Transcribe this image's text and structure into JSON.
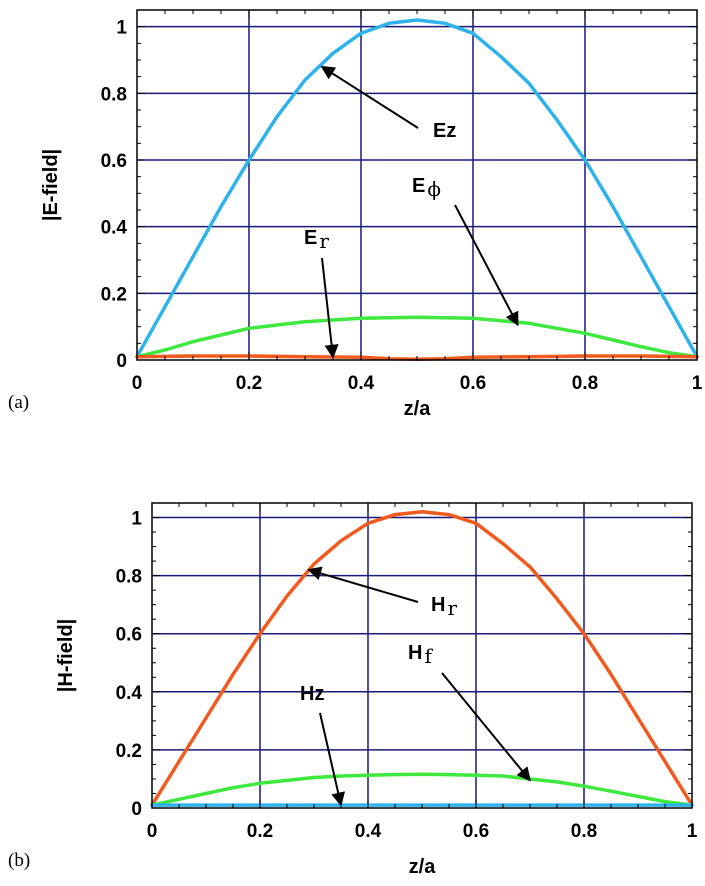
{
  "chart_data": [
    {
      "type": "line",
      "panel_label": "(a)",
      "xlabel": "z/a",
      "ylabel": "|E-field|",
      "xlim": [
        0,
        1
      ],
      "ylim": [
        0,
        1.05
      ],
      "xticks": [
        "0",
        "0.2",
        "0.4",
        "0.6",
        "0.8",
        "1"
      ],
      "yticks": [
        "0",
        "0.2",
        "0.4",
        "0.6",
        "0.8",
        "1"
      ],
      "grid": true,
      "colors": {
        "grid": "#1a1a7a",
        "frame": "#000000"
      },
      "series": [
        {
          "name": "Ez",
          "color": "#2db2ec",
          "x": [
            0,
            0.05,
            0.1,
            0.15,
            0.2,
            0.25,
            0.3,
            0.35,
            0.4,
            0.45,
            0.5,
            0.55,
            0.6,
            0.65,
            0.7,
            0.75,
            0.8,
            0.85,
            0.9,
            0.95,
            1
          ],
          "y": [
            0.01,
            0.16,
            0.31,
            0.46,
            0.6,
            0.73,
            0.84,
            0.92,
            0.98,
            1.01,
            1.02,
            1.01,
            0.98,
            0.91,
            0.83,
            0.72,
            0.6,
            0.46,
            0.31,
            0.16,
            0.01
          ]
        },
        {
          "name": "Eϕ",
          "color": "#3ee83e",
          "x": [
            0,
            0.05,
            0.1,
            0.15,
            0.2,
            0.25,
            0.3,
            0.35,
            0.4,
            0.45,
            0.5,
            0.55,
            0.6,
            0.65,
            0.7,
            0.75,
            0.8,
            0.85,
            0.9,
            0.95,
            1
          ],
          "y": [
            0.01,
            0.03,
            0.055,
            0.075,
            0.095,
            0.105,
            0.115,
            0.12,
            0.125,
            0.127,
            0.128,
            0.127,
            0.125,
            0.118,
            0.11,
            0.095,
            0.08,
            0.06,
            0.04,
            0.022,
            0.01
          ]
        },
        {
          "name": "Er",
          "color": "#f05a1e",
          "x": [
            0,
            0.1,
            0.2,
            0.3,
            0.4,
            0.45,
            0.5,
            0.55,
            0.6,
            0.7,
            0.8,
            0.9,
            1
          ],
          "y": [
            0.01,
            0.012,
            0.012,
            0.01,
            0.008,
            0.004,
            0.002,
            0.004,
            0.008,
            0.01,
            0.012,
            0.012,
            0.01
          ]
        }
      ],
      "annotations": [
        {
          "main": "E",
          "sub": "z",
          "font": "sans",
          "target": [
            0.33,
            0.88
          ]
        },
        {
          "main": "E",
          "sub": "ϕ",
          "font": "serif",
          "target": [
            0.68,
            0.105
          ]
        },
        {
          "main": "E",
          "sub": "r",
          "font": "serif",
          "target": [
            0.35,
            0.008
          ]
        }
      ]
    },
    {
      "type": "line",
      "panel_label": "(b)",
      "xlabel": "z/a",
      "ylabel": "|H-field|",
      "xlim": [
        0,
        1
      ],
      "ylim": [
        0,
        1.05
      ],
      "xticks": [
        "0",
        "0.2",
        "0.4",
        "0.6",
        "0.8",
        "1"
      ],
      "yticks": [
        "0",
        "0.2",
        "0.4",
        "0.6",
        "0.8",
        "1"
      ],
      "grid": true,
      "colors": {
        "grid": "#1a1a7a",
        "frame": "#000000"
      },
      "series": [
        {
          "name": "Hr",
          "color": "#f05a1e",
          "x": [
            0,
            0.05,
            0.1,
            0.15,
            0.2,
            0.25,
            0.3,
            0.35,
            0.4,
            0.45,
            0.5,
            0.55,
            0.6,
            0.65,
            0.7,
            0.75,
            0.8,
            0.85,
            0.9,
            0.95,
            1
          ],
          "y": [
            0.01,
            0.16,
            0.31,
            0.46,
            0.6,
            0.73,
            0.84,
            0.92,
            0.98,
            1.01,
            1.02,
            1.01,
            0.98,
            0.91,
            0.83,
            0.72,
            0.6,
            0.46,
            0.31,
            0.16,
            0.01
          ]
        },
        {
          "name": "Hf",
          "color": "#3ee83e",
          "x": [
            0,
            0.05,
            0.1,
            0.15,
            0.2,
            0.25,
            0.3,
            0.35,
            0.4,
            0.45,
            0.5,
            0.55,
            0.6,
            0.65,
            0.7,
            0.75,
            0.8,
            0.85,
            0.9,
            0.95,
            1
          ],
          "y": [
            0.01,
            0.03,
            0.05,
            0.07,
            0.085,
            0.095,
            0.105,
            0.11,
            0.113,
            0.115,
            0.116,
            0.115,
            0.113,
            0.11,
            0.1,
            0.09,
            0.075,
            0.058,
            0.04,
            0.022,
            0.01
          ]
        },
        {
          "name": "Hz",
          "color": "#2db2ec",
          "x": [
            0,
            0.25,
            0.5,
            0.75,
            1
          ],
          "y": [
            0.01,
            0.01,
            0.01,
            0.01,
            0.01
          ]
        }
      ],
      "annotations": [
        {
          "main": "H",
          "sub": "r",
          "font": "serif",
          "target": [
            0.29,
            0.82
          ]
        },
        {
          "main": "H",
          "sub": "f",
          "font": "serif",
          "target": [
            0.7,
            0.095
          ]
        },
        {
          "main": "H",
          "sub": "z",
          "font": "sans",
          "target": [
            0.35,
            0.01
          ]
        }
      ]
    }
  ]
}
